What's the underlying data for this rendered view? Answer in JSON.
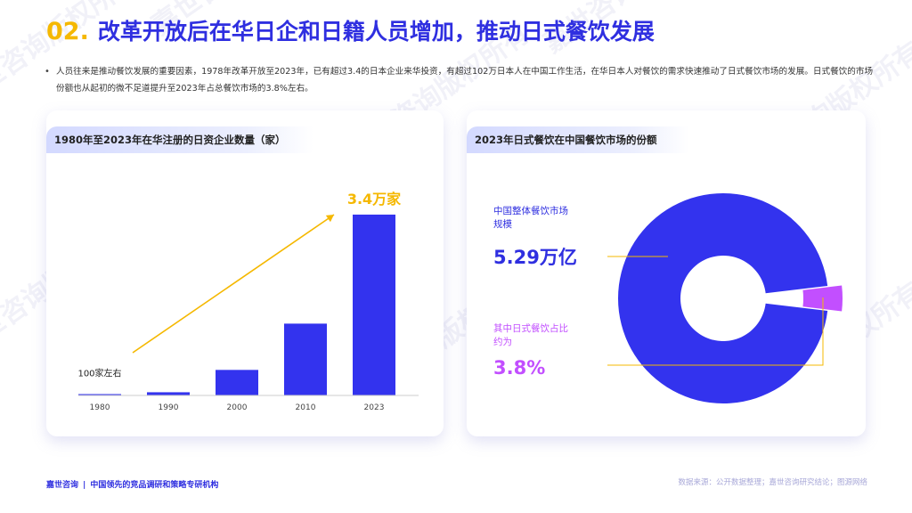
{
  "title": {
    "number": "02.",
    "text": "改革开放后在华日企和日籍人员增加，推动日式餐饮发展"
  },
  "intro": {
    "bullet": "•",
    "text": "人员往来是推动餐饮发展的重要因素，1978年改革开放至2023年，已有超过3.4的日本企业来华投资，有超过102万日本人在中国工作生活，在华日本人对餐饮的需求快速推动了日式餐饮市场的发展。日式餐饮的市场份额也从起初的微不足道提升至2023年占总餐饮市场的3.8%左右。"
  },
  "watermark": "嘉世咨询版权所有",
  "left_card": {
    "header": "1980年至2023年在华注册的日资企业数量（家）",
    "first_label": "100家左右",
    "last_label": "3.4万家"
  },
  "right_card": {
    "header": "2023年日式餐饮在中国餐饮市场的份额",
    "total_label_line1": "中国整体餐饮市场",
    "total_label_line2": "规模",
    "total_value": "5.29万亿",
    "share_label_line1": "其中日式餐饮占比",
    "share_label_line2": "约为",
    "share_value": "3.8%"
  },
  "footer": {
    "brand": "嘉世咨询",
    "separator": "|",
    "tagline": "中国领先的竞品调研和策略专研机构",
    "source": "数据来源：公开数据整理；嘉世咨询研究结论；图源网络"
  },
  "colors": {
    "accent_blue": "#3333ee",
    "accent_yellow": "#f5b800",
    "accent_purple": "#c24fff",
    "title_blue": "#2f2fe0"
  },
  "chart_data": [
    {
      "type": "bar",
      "title": "1980年至2023年在华注册的日资企业数量（家）",
      "categories": [
        "1980",
        "1990",
        "2000",
        "2010",
        "2023"
      ],
      "values": [
        100,
        600,
        4800,
        13500,
        34000
      ],
      "ylim": [
        0,
        36000
      ],
      "annotations": [
        "100家左右",
        "3.4万家"
      ],
      "trend_arrow": true,
      "grid": false
    },
    {
      "type": "pie",
      "title": "2023年日式餐饮在中国餐饮市场的份额",
      "donut": true,
      "labels": [
        "中国整体餐饮市场规模",
        "其中日式餐饮占比约为"
      ],
      "total": "5.29万亿",
      "values": [
        96.2,
        3.8
      ],
      "highlight": "3.8%"
    }
  ]
}
